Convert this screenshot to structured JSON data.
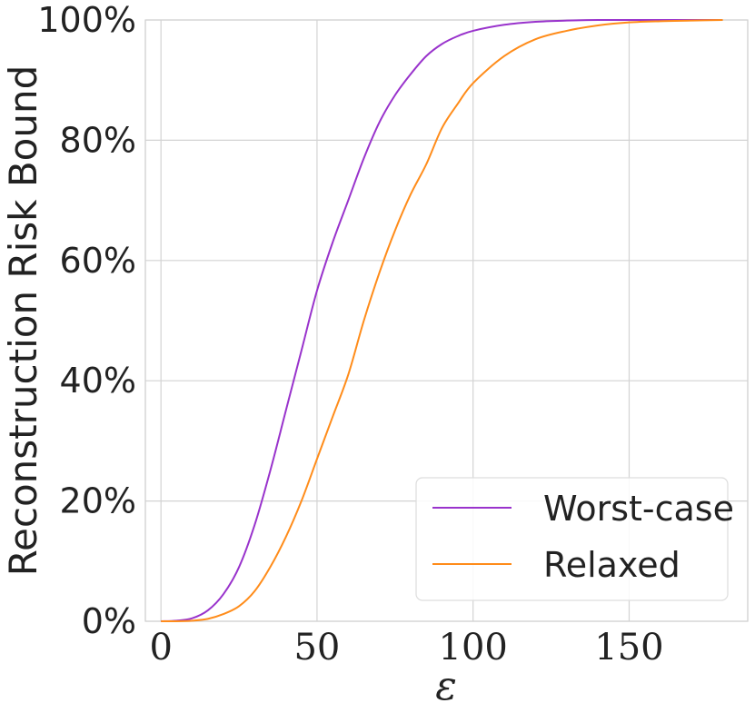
{
  "chart_data": {
    "type": "line",
    "xlabel": "ε",
    "ylabel": "Reconstruction Risk Bound",
    "xlim": [
      -5,
      188
    ],
    "ylim": [
      0,
      100
    ],
    "x_ticks": [
      "0",
      "50",
      "100",
      "150"
    ],
    "y_ticks": [
      "0%",
      "20%",
      "40%",
      "60%",
      "80%",
      "100%"
    ],
    "grid": true,
    "legend_position": "bottom-right",
    "series": [
      {
        "name": "Worst-case",
        "color": "#9933cc",
        "x": [
          0,
          5,
          10,
          15,
          20,
          25,
          30,
          35,
          40,
          45,
          50,
          55,
          60,
          65,
          70,
          75,
          80,
          85,
          90,
          95,
          100,
          110,
          120,
          130,
          140,
          150,
          160,
          170,
          180
        ],
        "y": [
          0,
          0.1,
          0.5,
          1.8,
          4.5,
          9,
          16,
          25,
          35,
          45,
          55,
          63,
          70,
          77,
          83,
          87.5,
          91,
          94,
          96,
          97.3,
          98.2,
          99.2,
          99.7,
          99.9,
          100,
          100,
          100,
          100,
          100
        ]
      },
      {
        "name": "Relaxed",
        "color": "#ff8c1a",
        "x": [
          0,
          5,
          10,
          15,
          20,
          25,
          30,
          35,
          40,
          45,
          50,
          55,
          60,
          65,
          70,
          75,
          80,
          85,
          90,
          95,
          100,
          110,
          120,
          130,
          140,
          150,
          160,
          170,
          180
        ],
        "y": [
          0,
          0,
          0.1,
          0.4,
          1.2,
          2.5,
          5,
          9,
          14,
          20,
          27,
          34,
          41,
          50,
          58,
          65,
          71,
          76,
          82,
          86,
          89.5,
          94,
          96.8,
          98.2,
          99.1,
          99.6,
          99.8,
          99.9,
          100
        ]
      }
    ]
  }
}
